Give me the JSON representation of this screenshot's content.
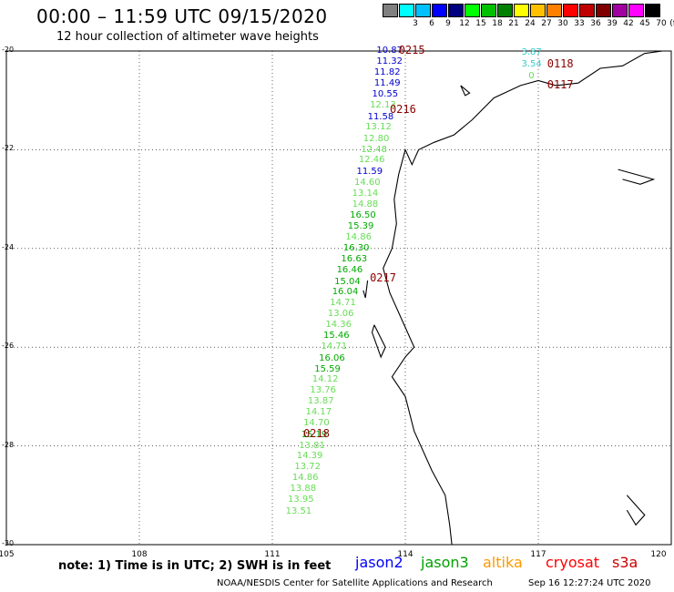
{
  "header": {
    "title": "00:00 – 11:59 UTC 09/15/2020",
    "subtitle": "12 hour collection of altimeter wave heights"
  },
  "legend": {
    "unit": "(ft)",
    "swatches": [
      {
        "label": "",
        "color": "#808080"
      },
      {
        "label": "3",
        "color": "#00ffff"
      },
      {
        "label": "6",
        "color": "#00c0ff"
      },
      {
        "label": "9",
        "color": "#0000ff"
      },
      {
        "label": "12",
        "color": "#00007f"
      },
      {
        "label": "15",
        "color": "#00ff00"
      },
      {
        "label": "18",
        "color": "#00c000"
      },
      {
        "label": "21",
        "color": "#008000"
      },
      {
        "label": "24",
        "color": "#ffff00"
      },
      {
        "label": "27",
        "color": "#ffc000"
      },
      {
        "label": "30",
        "color": "#ff8000"
      },
      {
        "label": "33",
        "color": "#ff0000"
      },
      {
        "label": "36",
        "color": "#c00000"
      },
      {
        "label": "39",
        "color": "#800000"
      },
      {
        "label": "42",
        "color": "#a000a0"
      },
      {
        "label": "45",
        "color": "#ff00ff"
      },
      {
        "label": "70",
        "color": "#000000"
      }
    ]
  },
  "axes": {
    "lat_labels": [
      "-20",
      "-22",
      "-24",
      "-26",
      "-28",
      "-30"
    ],
    "lon_labels": [
      "105",
      "108",
      "111",
      "114",
      "117",
      "120"
    ]
  },
  "observations": [
    {
      "text": "10.87",
      "color": "#0000cc",
      "lon": 113.35,
      "lat": -19.98
    },
    {
      "text": "11.32",
      "color": "#0000cc",
      "lon": 113.35,
      "lat": -20.2
    },
    {
      "text": "11.82",
      "color": "#0000cc",
      "lon": 113.3,
      "lat": -20.42
    },
    {
      "text": "11.49",
      "color": "#0000cc",
      "lon": 113.3,
      "lat": -20.65
    },
    {
      "text": "10.55",
      "color": "#0000cc",
      "lon": 113.25,
      "lat": -20.87
    },
    {
      "text": "12.13",
      "color": "#66dd55",
      "lon": 113.2,
      "lat": -21.09
    },
    {
      "text": "11.58",
      "color": "#0000cc",
      "lon": 113.15,
      "lat": -21.32
    },
    {
      "text": "13.12",
      "color": "#66dd55",
      "lon": 113.1,
      "lat": -21.54
    },
    {
      "text": "12.80",
      "color": "#66dd55",
      "lon": 113.05,
      "lat": -21.77
    },
    {
      "text": "12.48",
      "color": "#66dd55",
      "lon": 113.0,
      "lat": -21.99
    },
    {
      "text": "12.46",
      "color": "#66dd55",
      "lon": 112.95,
      "lat": -22.2
    },
    {
      "text": "11.59",
      "color": "#0000cc",
      "lon": 112.9,
      "lat": -22.43
    },
    {
      "text": "14.60",
      "color": "#66dd55",
      "lon": 112.85,
      "lat": -22.65
    },
    {
      "text": "13.14",
      "color": "#66dd55",
      "lon": 112.8,
      "lat": -22.88
    },
    {
      "text": "14.88",
      "color": "#66dd55",
      "lon": 112.8,
      "lat": -23.1
    },
    {
      "text": "16.50",
      "color": "#00aa00",
      "lon": 112.75,
      "lat": -23.32
    },
    {
      "text": "15.39",
      "color": "#00aa00",
      "lon": 112.7,
      "lat": -23.55
    },
    {
      "text": "14.86",
      "color": "#66dd55",
      "lon": 112.65,
      "lat": -23.77
    },
    {
      "text": "16.30",
      "color": "#00aa00",
      "lon": 112.6,
      "lat": -23.99
    },
    {
      "text": "16.63",
      "color": "#00aa00",
      "lon": 112.55,
      "lat": -24.21
    },
    {
      "text": "16.46",
      "color": "#00aa00",
      "lon": 112.45,
      "lat": -24.43
    },
    {
      "text": "15.04",
      "color": "#00aa00",
      "lon": 112.4,
      "lat": -24.66
    },
    {
      "text": "16.04",
      "color": "#00aa00",
      "lon": 112.35,
      "lat": -24.88
    },
    {
      "text": "14.71",
      "color": "#66dd55",
      "lon": 112.3,
      "lat": -25.1
    },
    {
      "text": "13.06",
      "color": "#66dd55",
      "lon": 112.25,
      "lat": -25.32
    },
    {
      "text": "14.36",
      "color": "#66dd55",
      "lon": 112.2,
      "lat": -25.54
    },
    {
      "text": "15.46",
      "color": "#00aa00",
      "lon": 112.15,
      "lat": -25.76
    },
    {
      "text": "14.71",
      "color": "#66dd55",
      "lon": 112.1,
      "lat": -25.98
    },
    {
      "text": "16.06",
      "color": "#00aa00",
      "lon": 112.05,
      "lat": -26.21
    },
    {
      "text": "15.59",
      "color": "#00aa00",
      "lon": 111.95,
      "lat": -26.43
    },
    {
      "text": "14.12",
      "color": "#66dd55",
      "lon": 111.9,
      "lat": -26.65
    },
    {
      "text": "13.76",
      "color": "#66dd55",
      "lon": 111.85,
      "lat": -26.87
    },
    {
      "text": "13.87",
      "color": "#66dd55",
      "lon": 111.8,
      "lat": -27.09
    },
    {
      "text": "14.17",
      "color": "#66dd55",
      "lon": 111.75,
      "lat": -27.31
    },
    {
      "text": "14.70",
      "color": "#66dd55",
      "lon": 111.7,
      "lat": -27.53
    },
    {
      "text": "15.19",
      "color": "#00aa00",
      "lon": 111.65,
      "lat": -27.76
    },
    {
      "text": "13.81",
      "color": "#66dd55",
      "lon": 111.6,
      "lat": -27.98
    },
    {
      "text": "14.39",
      "color": "#66dd55",
      "lon": 111.55,
      "lat": -28.2
    },
    {
      "text": "13.72",
      "color": "#66dd55",
      "lon": 111.5,
      "lat": -28.42
    },
    {
      "text": "14.86",
      "color": "#66dd55",
      "lon": 111.45,
      "lat": -28.64
    },
    {
      "text": "13.88",
      "color": "#66dd55",
      "lon": 111.4,
      "lat": -28.86
    },
    {
      "text": "13.95",
      "color": "#66dd55",
      "lon": 111.35,
      "lat": -29.08
    },
    {
      "text": "13.51",
      "color": "#66dd55",
      "lon": 111.3,
      "lat": -29.31
    },
    {
      "text": "3.87",
      "color": "#33cccc",
      "lon": 116.62,
      "lat": -20.02
    },
    {
      "text": "3.54",
      "color": "#33cccc",
      "lon": 116.62,
      "lat": -20.25
    },
    {
      "text": "0",
      "color": "#66dd55",
      "lon": 116.78,
      "lat": -20.5
    }
  ],
  "passes": [
    {
      "text": "0215",
      "lon": 113.85,
      "lat": -19.98
    },
    {
      "text": "0216",
      "lon": 113.65,
      "lat": -21.18
    },
    {
      "text": "0217",
      "lon": 113.2,
      "lat": -24.6
    },
    {
      "text": "0218",
      "lon": 111.7,
      "lat": -27.74
    },
    {
      "text": "0118",
      "lon": 117.2,
      "lat": -20.25
    },
    {
      "text": "0117",
      "lon": 117.2,
      "lat": -20.68
    }
  ],
  "footer": {
    "note": "note:  1) Time is in UTC;  2) SWH is in feet",
    "satellites": [
      {
        "name": "jason2",
        "color": "#0000ff"
      },
      {
        "name": "jason3",
        "color": "#00a000"
      },
      {
        "name": "altika",
        "color": "#ff9900"
      },
      {
        "name": "cryosat",
        "color": "#ff0000"
      },
      {
        "name": "s3a",
        "color": "#cc0000"
      }
    ],
    "credit": "NOAA/NESDIS Center for Satellite Applications and Research",
    "timestamp": "Sep 16 12:27:24 UTC 2020"
  }
}
